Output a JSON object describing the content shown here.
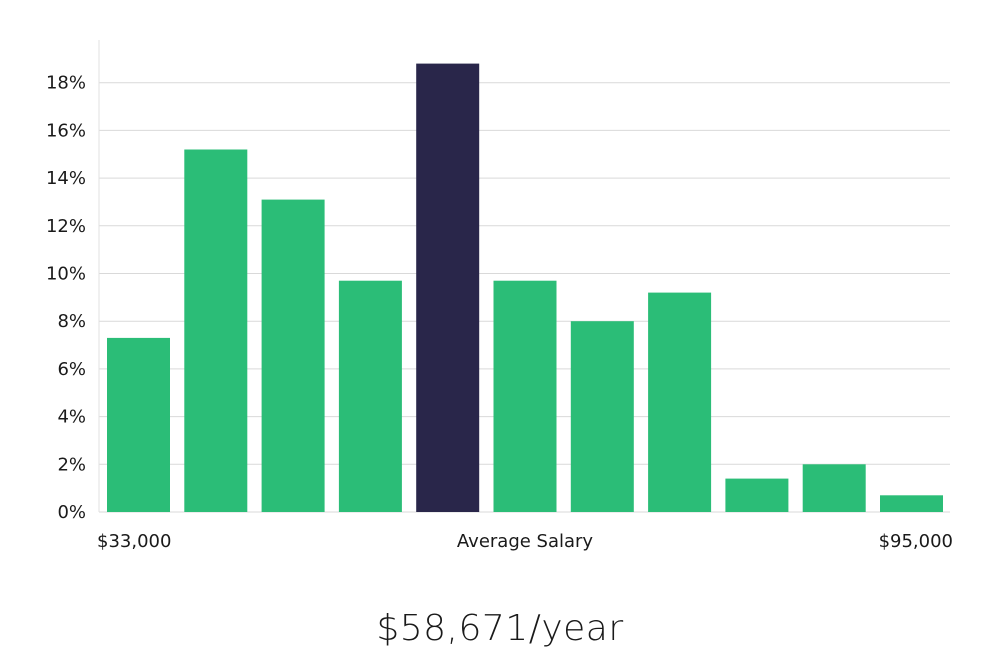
{
  "chart_data": {
    "type": "bar",
    "values": [
      7.3,
      15.2,
      13.1,
      9.7,
      18.8,
      9.7,
      8.0,
      9.2,
      1.4,
      2.0,
      0.7
    ],
    "highlight_index": 4,
    "y_ticks": [
      "0%",
      "2%",
      "4%",
      "6%",
      "8%",
      "10%",
      "12%",
      "14%",
      "16%",
      "18%"
    ],
    "ylim": [
      0,
      19.7
    ],
    "grid": true,
    "x_labels": {
      "left": "$33,000",
      "center": "Average Salary",
      "right": "$95,000"
    },
    "colors": {
      "bar": "#2bbd77",
      "highlight": "#29264a"
    }
  },
  "caption": "$58,671/year"
}
